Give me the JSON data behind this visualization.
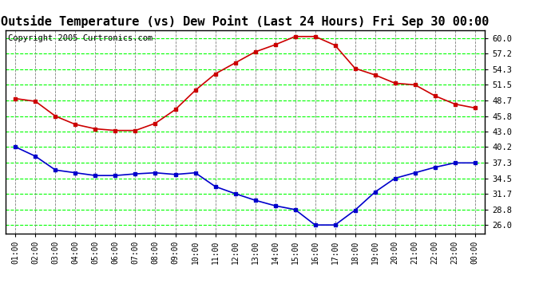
{
  "title": "Outside Temperature (vs) Dew Point (Last 24 Hours) Fri Sep 30 00:00",
  "copyright": "Copyright 2005 Curtronics.com",
  "x_labels": [
    "01:00",
    "02:00",
    "03:00",
    "04:00",
    "05:00",
    "06:00",
    "07:00",
    "08:00",
    "09:00",
    "10:00",
    "11:00",
    "12:00",
    "13:00",
    "14:00",
    "15:00",
    "16:00",
    "17:00",
    "18:00",
    "19:00",
    "20:00",
    "21:00",
    "22:00",
    "23:00",
    "00:00"
  ],
  "red_temp": [
    49.0,
    48.5,
    45.8,
    44.3,
    43.5,
    43.2,
    43.2,
    44.5,
    47.0,
    50.5,
    53.5,
    55.5,
    57.5,
    58.8,
    60.3,
    60.3,
    58.7,
    54.5,
    53.3,
    51.8,
    51.5,
    49.5,
    48.0,
    47.3
  ],
  "blue_dew": [
    40.2,
    38.5,
    36.0,
    35.5,
    35.0,
    35.0,
    35.3,
    35.5,
    35.2,
    35.5,
    33.0,
    31.7,
    30.5,
    29.5,
    28.8,
    26.0,
    26.0,
    28.7,
    32.0,
    34.5,
    35.5,
    36.5,
    37.3,
    37.3
  ],
  "red_color": "#cc0000",
  "blue_color": "#0000cc",
  "bg_color": "#ffffff",
  "plot_bg": "#ffffff",
  "grid_color_h": "#00ff00",
  "grid_color_v": "#808080",
  "y_ticks": [
    26.0,
    28.8,
    31.7,
    34.5,
    37.3,
    40.2,
    43.0,
    45.8,
    48.7,
    51.5,
    54.3,
    57.2,
    60.0
  ],
  "ylim": [
    24.5,
    61.5
  ],
  "title_fontsize": 11,
  "copyright_fontsize": 7.5,
  "tick_fontsize": 7.5,
  "xtick_fontsize": 7
}
